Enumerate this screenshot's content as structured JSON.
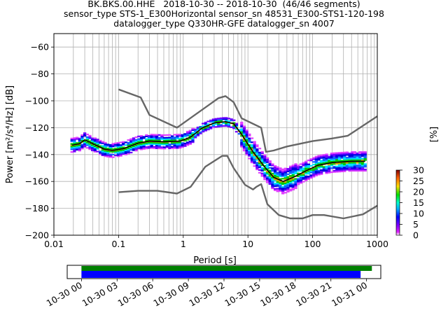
{
  "title_lines": [
    "BK.BKS.00.HHE   2018-10-30 -- 2018-10-30  (46/46 segments)",
    "sensor_type STS-1_E300Horizontal sensor_sn 48531_E300-STS1-120-198",
    "datalogger_type Q330HR-GFE datalogger_sn 4007"
  ],
  "chart_data": [
    {
      "type": "heatmap",
      "title": "BK.BKS.00.HHE   2018-10-30 -- 2018-10-30  (46/46 segments)",
      "xlabel": "Period [s]",
      "ylabel": "Power [m²/s⁴/Hz] [dB]",
      "xscale": "log",
      "xlim": [
        0.01,
        1000
      ],
      "ylim": [
        -200,
        -50
      ],
      "x_ticks": [
        "0.01",
        "0.1",
        "1",
        "10",
        "100",
        "1000"
      ],
      "x_tick_values": [
        0.01,
        0.1,
        1,
        10,
        100,
        1000
      ],
      "y_ticks": [
        "−60",
        "−80",
        "−100",
        "−120",
        "−140",
        "−160",
        "−180",
        "−200"
      ],
      "y_tick_values": [
        -60,
        -80,
        -100,
        -120,
        -140,
        -160,
        -180,
        -200
      ],
      "grid": true,
      "colorbar": {
        "label": "[%]",
        "range": [
          0,
          30
        ],
        "ticks": [
          "0",
          "5",
          "10",
          "15",
          "20",
          "25",
          "30"
        ],
        "tick_values": [
          0,
          5,
          10,
          15,
          20,
          25,
          30
        ]
      },
      "series": [
        {
          "name": "",
          "color": "#666666",
          "x": [
            0.1,
            0.22,
            0.3,
            0.8,
            3.5,
            4.5,
            6,
            8,
            16,
            19,
            25,
            40,
            100,
            200,
            350,
            1000
          ],
          "y": [
            -91.5,
            -97.5,
            -110.5,
            -120,
            -98,
            -96.5,
            -101,
            -113,
            -120,
            -138,
            -137,
            -134,
            -130,
            -128,
            -126,
            -111.5
          ]
        },
        {
          "name": "",
          "color": "#666666",
          "x": [
            0.1,
            0.2,
            0.4,
            0.8,
            1.3,
            2.2,
            4,
            4.8,
            6,
            9,
            12,
            13.5,
            16,
            20,
            30,
            45,
            70,
            100,
            150,
            300,
            600,
            1000
          ],
          "y": [
            -168,
            -167,
            -167,
            -169,
            -164,
            -149,
            -141,
            -141,
            -150,
            -162.5,
            -166,
            -164,
            -162,
            -177,
            -185,
            -187.5,
            -187.5,
            -185,
            -185,
            -187.5,
            -184.5,
            -178
          ]
        },
        {
          "name": "",
          "color": "#000000",
          "x": [
            0.019,
            0.025,
            0.03,
            0.04,
            0.06,
            0.08,
            0.12,
            0.2,
            0.3,
            0.5,
            0.9,
            1.3,
            2,
            3,
            4.5,
            6,
            8,
            12,
            18,
            25,
            35,
            50,
            80,
            120,
            200,
            400,
            650
          ],
          "y": [
            -133,
            -132,
            -129,
            -132,
            -136,
            -137,
            -135.5,
            -131.5,
            -130,
            -130.5,
            -130,
            -127,
            -120,
            -116.5,
            -115.5,
            -117,
            -125,
            -138,
            -149,
            -157,
            -160,
            -157,
            -152,
            -148,
            -146,
            -145,
            -145
          ]
        }
      ]
    },
    {
      "type": "bar",
      "title": "",
      "xlabel": "",
      "ylabel": "",
      "x_ticks": [
        "10-30 00",
        "10-30 03",
        "10-30 06",
        "10-30 09",
        "10-30 12",
        "10-30 15",
        "10-30 18",
        "10-30 21",
        "10-31 00"
      ],
      "xlim_hours": [
        -1.2,
        25.2
      ],
      "bars": [
        {
          "name": "",
          "color": "#008000",
          "start_hour": 0,
          "end_hour": 24.45
        },
        {
          "name": "",
          "color": "#0000ff",
          "start_hour": 0,
          "end_hour": 23.5
        }
      ]
    }
  ]
}
